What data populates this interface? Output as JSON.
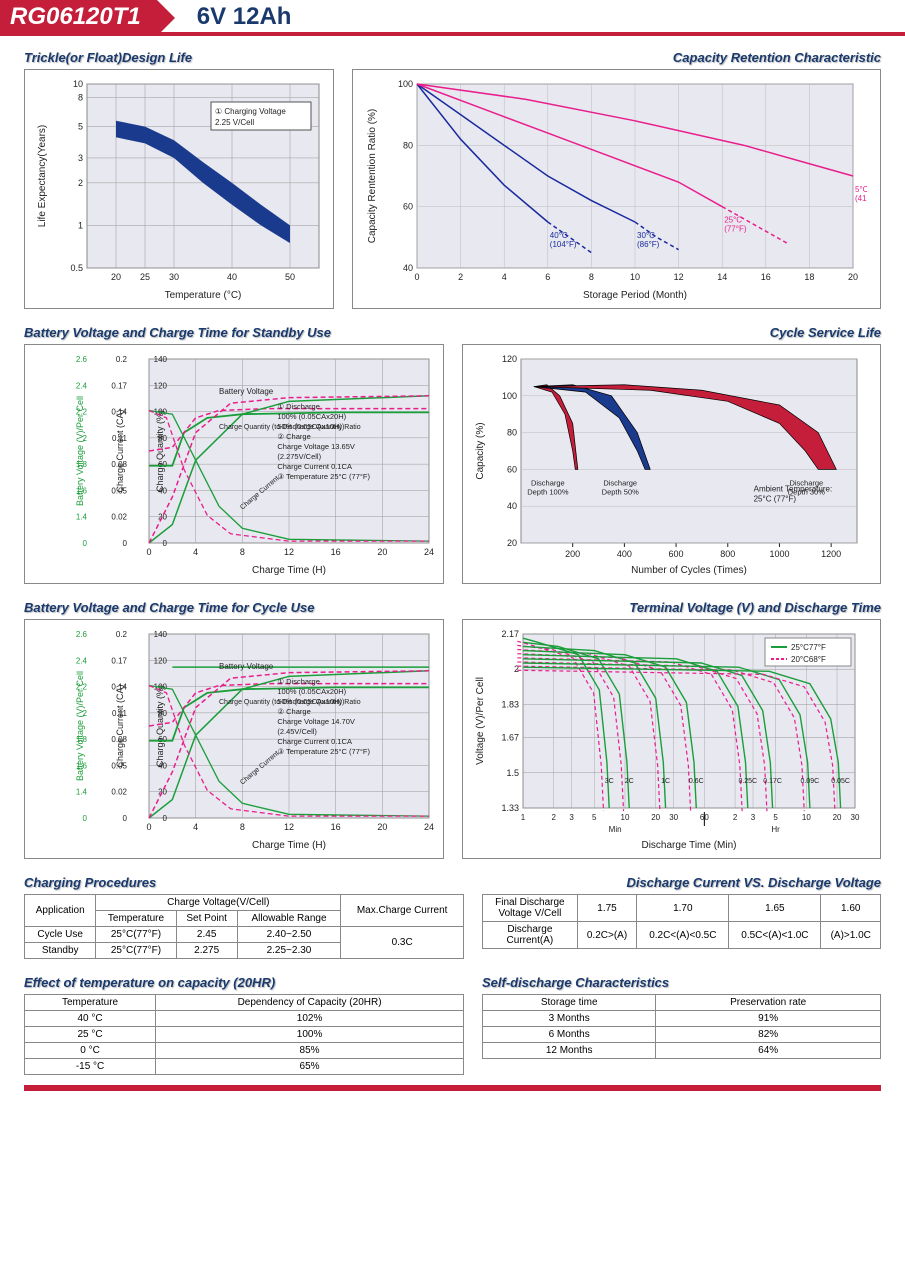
{
  "header": {
    "model": "RG06120T1",
    "spec": "6V  12Ah"
  },
  "chart1": {
    "title": "Trickle(or Float)Design Life",
    "xlabel": "Temperature (°C)",
    "ylabel": "Life Expectancy(Years)",
    "xticks": [
      20,
      25,
      30,
      40,
      50
    ],
    "yticks": [
      0.5,
      1,
      2,
      3,
      5,
      8,
      10
    ],
    "ylim": [
      0.5,
      10
    ],
    "xlim": [
      15,
      55
    ],
    "band_upper": [
      [
        20,
        5.5
      ],
      [
        25,
        5
      ],
      [
        30,
        4
      ],
      [
        35,
        2.8
      ],
      [
        40,
        2
      ],
      [
        45,
        1.4
      ],
      [
        50,
        1.0
      ]
    ],
    "band_lower": [
      [
        20,
        4.2
      ],
      [
        25,
        3.8
      ],
      [
        30,
        3
      ],
      [
        35,
        2.0
      ],
      [
        40,
        1.4
      ],
      [
        45,
        1.0
      ],
      [
        50,
        0.75
      ]
    ],
    "band_color": "#1a3a8e",
    "note_box": "① Charging Voltage\n    2.25 V/Cell",
    "bg": "#e8e8f0"
  },
  "chart2": {
    "title": "Capacity Retention Characteristic",
    "xlabel": "Storage Period (Month)",
    "ylabel": "Capacity Rentention Ratio (%)",
    "xticks": [
      0,
      2,
      4,
      6,
      8,
      10,
      12,
      14,
      16,
      18,
      20
    ],
    "yticks": [
      40,
      60,
      80,
      100
    ],
    "xlim": [
      0,
      20
    ],
    "ylim": [
      40,
      100
    ],
    "grid_color": "#bbb",
    "bg": "#e8e8f0",
    "series": [
      {
        "label": "40°C\n(104°F)",
        "color": "#1a2a9e",
        "dash": false,
        "pts": [
          [
            0,
            100
          ],
          [
            2,
            82
          ],
          [
            4,
            67
          ],
          [
            6,
            55
          ]
        ],
        "ext": [
          [
            6,
            55
          ],
          [
            7,
            50
          ],
          [
            8,
            45
          ]
        ]
      },
      {
        "label": "30°C\n(86°F)",
        "color": "#1a2a9e",
        "dash": false,
        "pts": [
          [
            0,
            100
          ],
          [
            2,
            90
          ],
          [
            4,
            80
          ],
          [
            6,
            70
          ],
          [
            8,
            62
          ],
          [
            10,
            55
          ]
        ],
        "ext": [
          [
            10,
            55
          ],
          [
            11,
            50
          ],
          [
            12,
            46
          ]
        ]
      },
      {
        "label": "25°C\n(77°F)",
        "color": "#e91e8c",
        "dash": false,
        "pts": [
          [
            0,
            100
          ],
          [
            3,
            92
          ],
          [
            6,
            84
          ],
          [
            9,
            76
          ],
          [
            12,
            68
          ],
          [
            14,
            60
          ]
        ],
        "ext": [
          [
            14,
            60
          ],
          [
            16,
            52
          ],
          [
            17,
            48
          ]
        ]
      },
      {
        "label": "5°C\n(41°F)",
        "color": "#e91e8c",
        "dash": false,
        "pts": [
          [
            0,
            100
          ],
          [
            5,
            95
          ],
          [
            10,
            88
          ],
          [
            15,
            80
          ],
          [
            18,
            74
          ],
          [
            20,
            70
          ]
        ],
        "ext": []
      }
    ]
  },
  "chart3": {
    "title": "Battery Voltage and Charge Time for Standby Use",
    "xlabel": "Charge Time (H)",
    "xticks": [
      0,
      4,
      8,
      12,
      16,
      20,
      24
    ],
    "xlim": [
      0,
      24
    ],
    "y1": {
      "label": "Charge Quantity (%)",
      "ticks": [
        0,
        20,
        40,
        60,
        80,
        100,
        120,
        140
      ]
    },
    "y2": {
      "label": "Charge Current (CA)",
      "ticks": [
        0,
        0.02,
        0.05,
        0.08,
        0.11,
        0.14,
        0.17,
        0.2
      ]
    },
    "y3": {
      "label": "Battery Voltage (V)/Per Cell",
      "ticks": [
        0,
        1.4,
        1.6,
        1.8,
        2.0,
        2.2,
        2.4,
        2.6
      ]
    },
    "notes": [
      "① Discharge",
      "   100% (0.05CAx20H)",
      "   50% (0.05CAx10H)",
      "② Charge",
      "   Charge Voltage 13.65V",
      "   (2.275V/Cell)",
      "   Charge Current 0.1CA",
      "③ Temperature 25°C (77°F)"
    ],
    "label_bv": "Battery Voltage",
    "label_cq": "Charge Quantity (to-Discharge Quantity)Ratio",
    "label_cc": "Charge Current",
    "bg": "#e8e8f0"
  },
  "chart4": {
    "title": "Cycle Service Life",
    "xlabel": "Number of Cycles (Times)",
    "ylabel": "Capacity (%)",
    "xticks": [
      200,
      400,
      600,
      800,
      1000,
      1200
    ],
    "xlim": [
      0,
      1300
    ],
    "yticks": [
      20,
      40,
      60,
      80,
      100,
      120
    ],
    "ylim": [
      20,
      120
    ],
    "bg": "#e8e8f0",
    "bands": [
      {
        "label": "Discharge\nDepth 100%",
        "color": "#c41e3a",
        "upper": [
          [
            50,
            105
          ],
          [
            100,
            106
          ],
          [
            150,
            100
          ],
          [
            200,
            85
          ],
          [
            220,
            60
          ]
        ],
        "lower": [
          [
            50,
            105
          ],
          [
            120,
            102
          ],
          [
            170,
            90
          ],
          [
            200,
            70
          ],
          [
            210,
            60
          ]
        ]
      },
      {
        "label": "Discharge\nDepth 50%",
        "color": "#1a3a8e",
        "upper": [
          [
            50,
            105
          ],
          [
            200,
            106
          ],
          [
            350,
            100
          ],
          [
            450,
            80
          ],
          [
            500,
            60
          ]
        ],
        "lower": [
          [
            50,
            105
          ],
          [
            250,
            102
          ],
          [
            380,
            88
          ],
          [
            450,
            70
          ],
          [
            480,
            60
          ]
        ]
      },
      {
        "label": "Discharge\nDepth 30%",
        "color": "#c41e3a",
        "upper": [
          [
            50,
            105
          ],
          [
            400,
            106
          ],
          [
            700,
            103
          ],
          [
            1000,
            95
          ],
          [
            1150,
            80
          ],
          [
            1220,
            60
          ]
        ],
        "lower": [
          [
            50,
            105
          ],
          [
            500,
            103
          ],
          [
            800,
            97
          ],
          [
            1000,
            85
          ],
          [
            1100,
            70
          ],
          [
            1150,
            60
          ]
        ]
      }
    ],
    "note": "Ambient Temperature:\n25°C (77°F)"
  },
  "chart5": {
    "title": "Battery Voltage and Charge Time for Cycle Use",
    "xlabel": "Charge Time (H)",
    "xticks": [
      0,
      4,
      8,
      12,
      16,
      20,
      24
    ],
    "xlim": [
      0,
      24
    ],
    "y1": {
      "label": "Charge Quantity (%)",
      "ticks": [
        0,
        20,
        40,
        60,
        80,
        100,
        120,
        140
      ]
    },
    "y2": {
      "label": "Charge Current (CA)",
      "ticks": [
        0,
        0.02,
        0.05,
        0.08,
        0.11,
        0.14,
        0.17,
        0.2
      ]
    },
    "y3": {
      "label": "Battery Voltage (V)/Per Cell",
      "ticks": [
        0,
        1.4,
        1.6,
        1.8,
        2.0,
        2.2,
        2.4,
        2.6
      ]
    },
    "notes": [
      "① Discharge",
      "   100% (0.05CAx20H)",
      "   50% (0.05CAx10H)",
      "② Charge",
      "   Charge Voltage 14.70V",
      "   (2.45V/Cell)",
      "   Charge Current 0.1CA",
      "③ Temperature 25°C (77°F)"
    ],
    "label_bv": "Battery Voltage",
    "label_cq": "Charge Quantity (to-Discharge Quantity)Ratio",
    "label_cc": "Charge Current",
    "bg": "#e8e8f0"
  },
  "chart6": {
    "title": "Terminal Voltage (V) and Discharge Time",
    "xlabel": "Discharge Time (Min)",
    "xrange_labels": [
      "Min",
      "Hr"
    ],
    "xticks_min": [
      1,
      2,
      3,
      5,
      10,
      20,
      30,
      60
    ],
    "xticks_hr": [
      2,
      3,
      5,
      10,
      20,
      30
    ],
    "ylabel": "Voltage (V)/Per Cell",
    "yticks": [
      1.33,
      1.5,
      1.67,
      1.83,
      2.0,
      2.17
    ],
    "ylim": [
      1.33,
      2.17
    ],
    "bg": "#e8e8f0",
    "legend": [
      {
        "label": "25°C77°F",
        "color": "#1a9e3a",
        "dash": false
      },
      {
        "label": "20°C68°F",
        "color": "#e91e8c",
        "dash": true
      }
    ],
    "curves": [
      "3C",
      "2C",
      "1C",
      "0.6C",
      "0.25C",
      "0.17C",
      "0.09C",
      "0.05C"
    ]
  },
  "table1": {
    "title": "Charging Procedures",
    "headers": [
      "Application",
      "Charge Voltage(V/Cell)",
      "Max.Charge Current"
    ],
    "sub": [
      "Temperature",
      "Set Point",
      "Allowable Range"
    ],
    "rows": [
      [
        "Cycle Use",
        "25°C(77°F)",
        "2.45",
        "2.40~2.50"
      ],
      [
        "Standby",
        "25°C(77°F)",
        "2.275",
        "2.25~2.30"
      ]
    ],
    "max_current": "0.3C"
  },
  "table2": {
    "title": "Discharge Current VS. Discharge Voltage",
    "row1": [
      "Final Discharge\nVoltage V/Cell",
      "1.75",
      "1.70",
      "1.65",
      "1.60"
    ],
    "row2": [
      "Discharge\nCurrent(A)",
      "0.2C>(A)",
      "0.2C<(A)<0.5C",
      "0.5C<(A)<1.0C",
      "(A)>1.0C"
    ]
  },
  "table3": {
    "title": "Effect of temperature on capacity (20HR)",
    "headers": [
      "Temperature",
      "Dependency of Capacity (20HR)"
    ],
    "rows": [
      [
        "40 °C",
        "102%"
      ],
      [
        "25 °C",
        "100%"
      ],
      [
        "0 °C",
        "85%"
      ],
      [
        "-15 °C",
        "65%"
      ]
    ]
  },
  "table4": {
    "title": "Self-discharge Characteristics",
    "headers": [
      "Storage time",
      "Preservation rate"
    ],
    "rows": [
      [
        "3 Months",
        "91%"
      ],
      [
        "6 Months",
        "82%"
      ],
      [
        "12 Months",
        "64%"
      ]
    ]
  }
}
